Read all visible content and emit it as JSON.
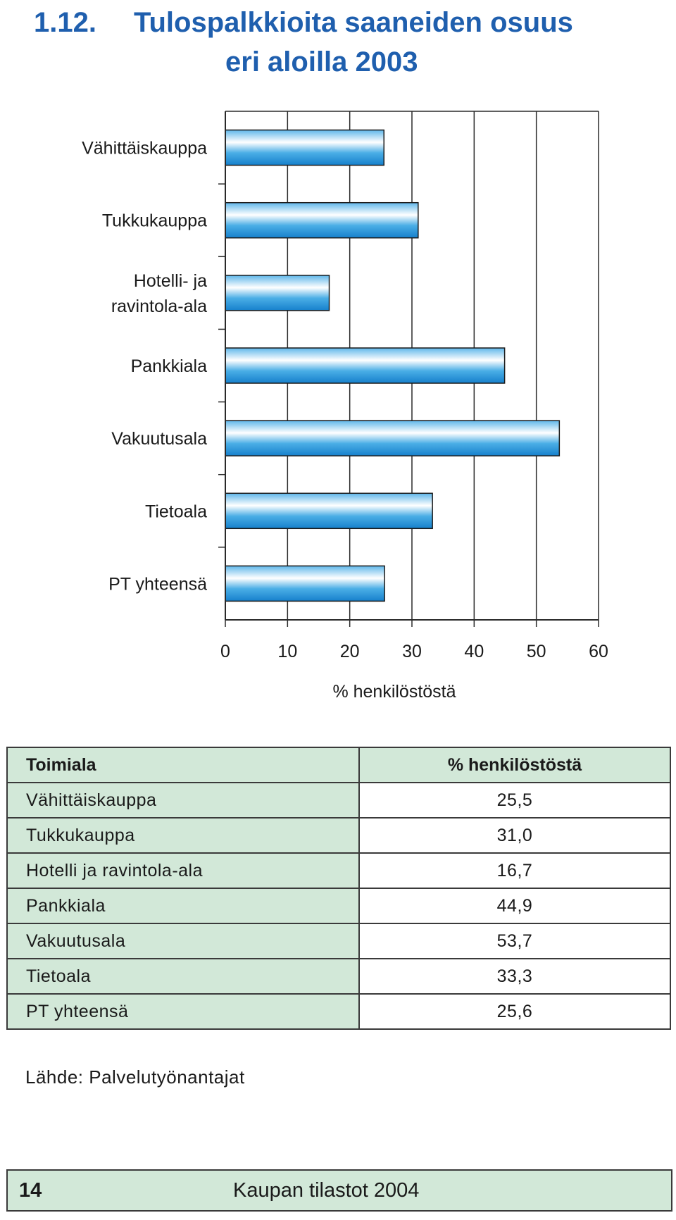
{
  "title": {
    "number": "1.12.",
    "line1": "Tulospalkkioita saaneiden osuus",
    "line2": "eri aloilla 2003"
  },
  "chart_data": {
    "type": "bar",
    "orientation": "horizontal",
    "categories": [
      "Vähittäiskauppa",
      "Tukkukauppa",
      "Hotelli- ja ravintola-ala",
      "Pankkiala",
      "Vakuutusala",
      "Tietoala",
      "PT yhteensä"
    ],
    "category_labels": [
      [
        "Vähittäiskauppa"
      ],
      [
        "Tukkukauppa"
      ],
      [
        "Hotelli- ja",
        "ravintola-ala"
      ],
      [
        "Pankkiala"
      ],
      [
        "Vakuutusala"
      ],
      [
        "Tietoala"
      ],
      [
        "PT yhteensä"
      ]
    ],
    "values": [
      25.5,
      31.0,
      16.7,
      44.9,
      53.7,
      33.3,
      25.6
    ],
    "xlabel": "% henkilöstöstä",
    "xlim": [
      0,
      60
    ],
    "xticks": [
      0,
      10,
      20,
      30,
      40,
      50,
      60
    ],
    "grid": true,
    "bar_color": "#1e90d6"
  },
  "table": {
    "headers": [
      "Toimiala",
      "% henkilöstöstä"
    ],
    "rows": [
      [
        "Vähittäiskauppa",
        "25,5"
      ],
      [
        "Tukkukauppa",
        "31,0"
      ],
      [
        "Hotelli ja ravintola-ala",
        "16,7"
      ],
      [
        "Pankkiala",
        "44,9"
      ],
      [
        "Vakuutusala",
        "53,7"
      ],
      [
        "Tietoala",
        "33,3"
      ],
      [
        "PT yhteensä",
        "25,6"
      ]
    ]
  },
  "source": "Lähde: Palvelutyönantajat",
  "footer": {
    "page": "14",
    "publication": "Kaupan tilastot 2004"
  },
  "colors": {
    "title": "#1f5fae",
    "table_fill": "#d2e8d8",
    "bar": "#1e90d6"
  }
}
